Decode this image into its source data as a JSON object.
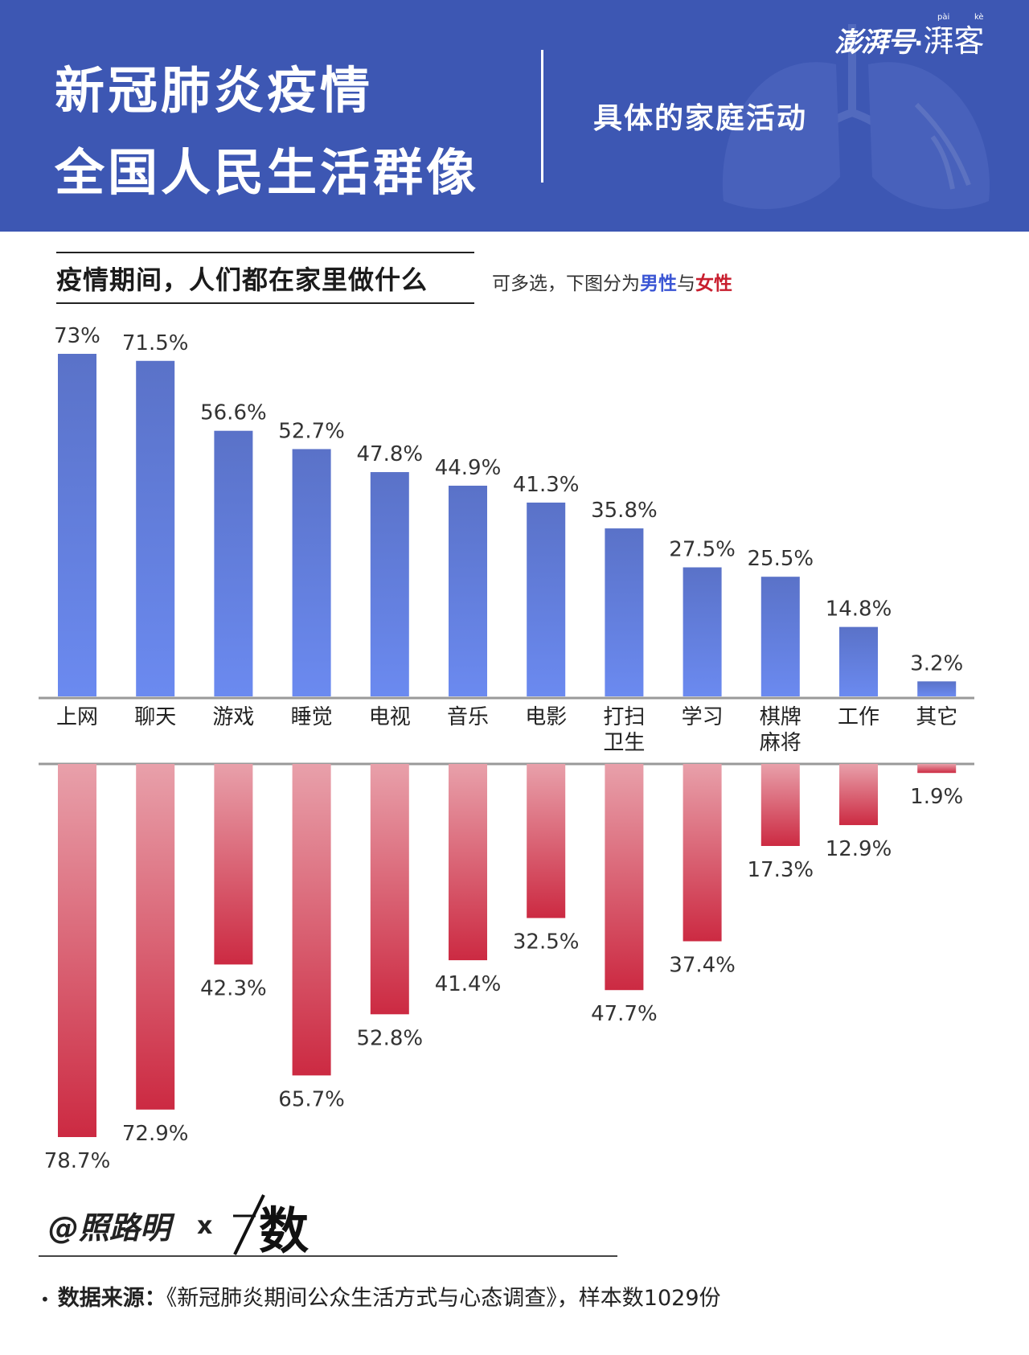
{
  "header": {
    "title_line1": "新冠肺炎疫情",
    "title_line2": "全国人民生活群像",
    "section": "具体的家庭活动",
    "brand_main": "澎湃号",
    "brand_sep": "·",
    "brand_sub": "湃客",
    "brand_pinyin_1": "pài",
    "brand_pinyin_2": "kè"
  },
  "subtitle": "疫情期间，人们都在家里做什么",
  "note": {
    "prefix": "可多选，下图分为",
    "male": "男性",
    "conj": "与",
    "female": "女性"
  },
  "colors": {
    "header_bg": "#3d57b3",
    "male_top": "#5a72c8",
    "male_bottom": "#6b8af0",
    "female_top": "#e8a0aa",
    "female_bottom": "#cc2a42"
  },
  "chart_data": {
    "type": "bar",
    "categories": [
      "上网",
      "聊天",
      "游戏",
      "睡觉",
      "电视",
      "音乐",
      "电影",
      "打扫\n卫生",
      "学习",
      "棋牌\n麻将",
      "工作",
      "其它"
    ],
    "series": [
      {
        "name": "男性",
        "values": [
          73,
          71.5,
          56.6,
          52.7,
          47.8,
          44.9,
          41.3,
          35.8,
          27.5,
          25.5,
          14.8,
          3.2
        ]
      },
      {
        "name": "女性",
        "values": [
          78.7,
          72.9,
          42.3,
          65.7,
          52.8,
          41.4,
          32.5,
          47.7,
          37.4,
          17.3,
          12.9,
          1.9
        ]
      }
    ],
    "value_labels": {
      "male": [
        "73%",
        "71.5%",
        "56.6%",
        "52.7%",
        "47.8%",
        "44.9%",
        "41.3%",
        "35.8%",
        "27.5%",
        "25.5%",
        "14.8%",
        "3.2%"
      ],
      "female": [
        "78.7%",
        "72.9%",
        "42.3%",
        "65.7%",
        "52.8%",
        "41.4%",
        "32.5%",
        "47.7%",
        "37.4%",
        "17.3%",
        "12.9%",
        "1.9%"
      ]
    },
    "unit": "%",
    "layout": "mirrored male bars above axis, female bars below axis",
    "grid": false
  },
  "footer": {
    "credit": "@照路明",
    "credit_x": "x",
    "partner_logo_text": "数",
    "source_label": "数据来源：",
    "source_text": "《新冠肺炎期间公众生活方式与心态调查》，样本数1029份"
  }
}
